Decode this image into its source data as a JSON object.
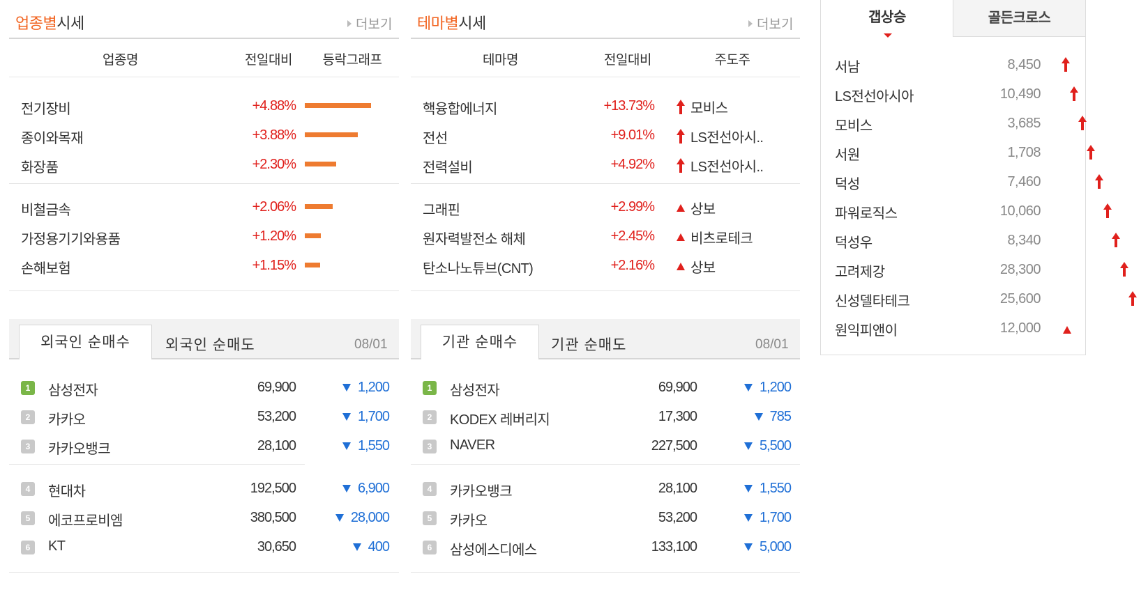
{
  "sector": {
    "title_highlight": "업종별",
    "title_rest": "시세",
    "more": "더보기",
    "columns": [
      "업종명",
      "전일대비",
      "등락그래프"
    ],
    "rows": [
      {
        "name": "전기장비",
        "change": "+4.88%",
        "bar_pct": 4.88
      },
      {
        "name": "종이와목재",
        "change": "+3.88%",
        "bar_pct": 3.88
      },
      {
        "name": "화장품",
        "change": "+2.30%",
        "bar_pct": 2.3
      },
      {
        "name": "비철금속",
        "change": "+2.06%",
        "bar_pct": 2.06
      },
      {
        "name": "가정용기기와용품",
        "change": "+1.20%",
        "bar_pct": 1.2
      },
      {
        "name": "손해보험",
        "change": "+1.15%",
        "bar_pct": 1.15
      }
    ]
  },
  "theme": {
    "title_highlight": "테마별",
    "title_rest": "시세",
    "more": "더보기",
    "columns": [
      "테마명",
      "전일대비",
      "주도주"
    ],
    "rows": [
      {
        "name": "핵융합에너지",
        "change": "+13.73%",
        "icon": "arrow-up-icon",
        "leader": "모비스"
      },
      {
        "name": "전선",
        "change": "+9.01%",
        "icon": "arrow-up-icon",
        "leader": "LS전선아시.."
      },
      {
        "name": "전력설비",
        "change": "+4.92%",
        "icon": "arrow-up-icon",
        "leader": "LS전선아시.."
      },
      {
        "name": "그래핀",
        "change": "+2.99%",
        "icon": "triangle-up-icon",
        "leader": "상보"
      },
      {
        "name": "원자력발전소 해체",
        "change": "+2.45%",
        "icon": "triangle-up-icon",
        "leader": "비츠로테크"
      },
      {
        "name": "탄소나노튜브(CNT)",
        "change": "+2.16%",
        "icon": "triangle-up-icon",
        "leader": "상보"
      }
    ]
  },
  "foreign": {
    "tabs": [
      "외국인 순매수",
      "외국인 순매도"
    ],
    "date": "08/01",
    "rows": [
      {
        "rank": "1",
        "name": "삼성전자",
        "price": "69,900",
        "change": "1,200"
      },
      {
        "rank": "2",
        "name": "카카오",
        "price": "53,200",
        "change": "1,700"
      },
      {
        "rank": "3",
        "name": "카카오뱅크",
        "price": "28,100",
        "change": "1,550"
      },
      {
        "rank": "4",
        "name": "현대차",
        "price": "192,500",
        "change": "6,900"
      },
      {
        "rank": "5",
        "name": "에코프로비엠",
        "price": "380,500",
        "change": "28,000"
      },
      {
        "rank": "6",
        "name": "KT",
        "price": "30,650",
        "change": "400"
      }
    ]
  },
  "institution": {
    "tabs": [
      "기관 순매수",
      "기관 순매도"
    ],
    "date": "08/01",
    "rows": [
      {
        "rank": "1",
        "name": "삼성전자",
        "price": "69,900",
        "change": "1,200"
      },
      {
        "rank": "2",
        "name": "KODEX 레버리지",
        "price": "17,300",
        "change": "785"
      },
      {
        "rank": "3",
        "name": "NAVER",
        "price": "227,500",
        "change": "5,500"
      },
      {
        "rank": "4",
        "name": "카카오뱅크",
        "price": "28,100",
        "change": "1,550"
      },
      {
        "rank": "5",
        "name": "카카오",
        "price": "53,200",
        "change": "1,700"
      },
      {
        "rank": "6",
        "name": "삼성에스디에스",
        "price": "133,100",
        "change": "5,000"
      }
    ]
  },
  "gap": {
    "tabs": [
      "갭상승",
      "골든크로스"
    ],
    "rows": [
      {
        "name": "서남",
        "price": "8,450",
        "icon": "arrow-up-icon"
      },
      {
        "name": "LS전선아시아",
        "price": "10,490",
        "icon": "arrow-up-icon"
      },
      {
        "name": "모비스",
        "price": "3,685",
        "icon": "arrow-up-icon"
      },
      {
        "name": "서원",
        "price": "1,708",
        "icon": "arrow-up-icon"
      },
      {
        "name": "덕성",
        "price": "7,460",
        "icon": "arrow-up-icon"
      },
      {
        "name": "파워로직스",
        "price": "10,060",
        "icon": "arrow-up-icon"
      },
      {
        "name": "덕성우",
        "price": "8,340",
        "icon": "arrow-up-icon"
      },
      {
        "name": "고려제강",
        "price": "28,300",
        "icon": "arrow-up-icon"
      },
      {
        "name": "신성델타테크",
        "price": "25,600",
        "icon": "arrow-up-icon"
      },
      {
        "name": "원익피앤이",
        "price": "12,000",
        "icon": "triangle-up-icon"
      }
    ]
  },
  "colors": {
    "accent": "#f26522",
    "rise": "#e0201c",
    "fall": "#1f6fd6",
    "bar": "#ee7b30",
    "rank_top": "#7ab648"
  }
}
